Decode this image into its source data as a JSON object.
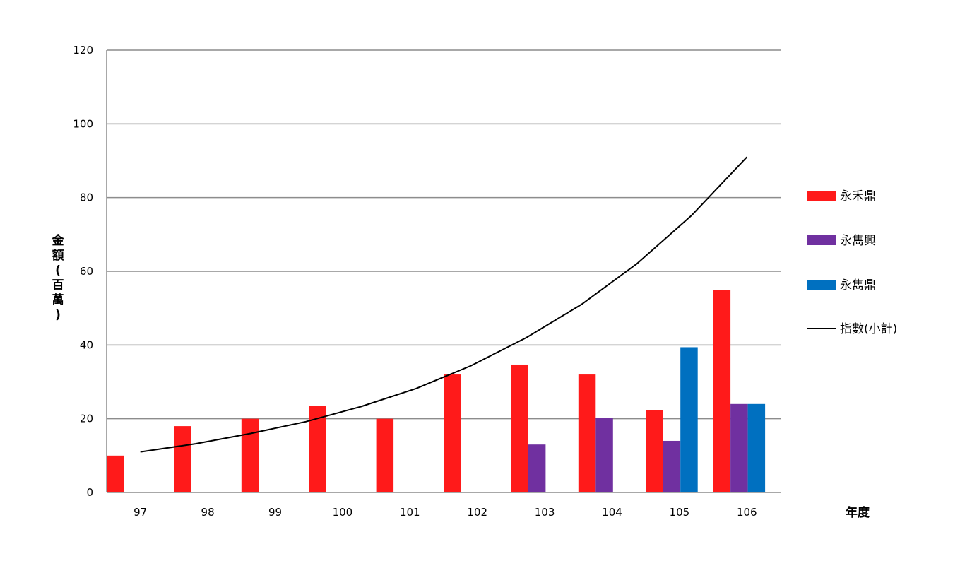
{
  "chart_data": {
    "type": "bar",
    "xlabel": "年度",
    "ylabel": "金額(百萬)",
    "ylabel_lines": [
      "金",
      "額",
      "(",
      "百",
      "萬",
      ")"
    ],
    "categories": [
      "97",
      "98",
      "99",
      "100",
      "101",
      "102",
      "103",
      "104",
      "105",
      "106"
    ],
    "ylim": [
      0,
      120
    ],
    "yticks": [
      "0",
      "20",
      "40",
      "60",
      "80",
      "100",
      "120"
    ],
    "grid": true,
    "legend_position": "right",
    "series": [
      {
        "name": "永禾鼎",
        "color": "#ff1a1a",
        "values": [
          10,
          18,
          20,
          23.5,
          20,
          32,
          34.7,
          32,
          22.3,
          55
        ]
      },
      {
        "name": "永雋興",
        "color": "#7030a0",
        "values": [
          0,
          0,
          0,
          0,
          0,
          0,
          13,
          20.3,
          14,
          24
        ]
      },
      {
        "name": "永雋鼎",
        "color": "#0070c0",
        "values": [
          0,
          0,
          0,
          0,
          0,
          0,
          0,
          0,
          39.4,
          24
        ]
      }
    ],
    "trendline": {
      "name": "指數(小計)",
      "type": "exponential",
      "color": "#000000",
      "values": [
        11,
        13.2,
        16,
        19.2,
        23.3,
        28.2,
        34.4,
        42,
        51,
        62,
        75.2,
        91
      ]
    }
  }
}
